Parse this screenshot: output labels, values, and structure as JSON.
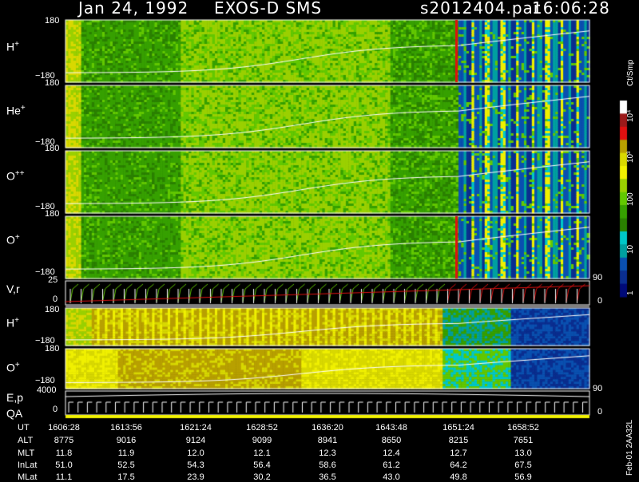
{
  "header": {
    "date": "Jan 24, 1992",
    "instrument": "EXOS-D SMS",
    "file": "s2012404.par",
    "time": "16:06:28"
  },
  "chart_data": [
    {
      "type": "heatmap",
      "panel": "H+",
      "label": "H",
      "charge": "+",
      "yticks": [
        "180",
        "−180"
      ],
      "ylim": [
        -180,
        180
      ]
    },
    {
      "type": "heatmap",
      "panel": "He+",
      "label": "He",
      "charge": "+",
      "yticks": [
        "180",
        "−180"
      ],
      "ylim": [
        -180,
        180
      ]
    },
    {
      "type": "heatmap",
      "panel": "O++",
      "label": "O",
      "charge": "++",
      "yticks": [
        "180",
        "−180"
      ],
      "ylim": [
        -180,
        180
      ]
    },
    {
      "type": "heatmap",
      "panel": "O+",
      "label": "O",
      "charge": "+",
      "yticks": [
        "180",
        "−180"
      ],
      "ylim": [
        -180,
        180
      ]
    },
    {
      "type": "line",
      "panel": "V,r",
      "label": "V,r",
      "yticks": [
        "25",
        "0"
      ],
      "right_ticks": [
        "90",
        "0"
      ]
    },
    {
      "type": "heatmap",
      "panel": "H+ (lower)",
      "label": "H",
      "charge": "+",
      "yticks": [
        "180",
        "−180"
      ]
    },
    {
      "type": "heatmap",
      "panel": "O+ (lower)",
      "label": "O",
      "charge": "+",
      "yticks": [
        "180",
        "−180"
      ]
    },
    {
      "type": "line",
      "panel": "E,p QA",
      "label": "E,p",
      "label2": "QA",
      "yticks": [
        "4000",
        "0"
      ],
      "right_ticks": [
        "90",
        "0"
      ]
    }
  ],
  "colorbar": {
    "title": "Ct/Smp",
    "labels": [
      "10⁴",
      "10³",
      "100",
      "10",
      "1"
    ],
    "colors": [
      "#ffffff",
      "#9c1a1a",
      "#e01010",
      "#b8a000",
      "#d8d800",
      "#f0f000",
      "#9ad000",
      "#62c800",
      "#36a000",
      "#2a8000",
      "#00c8c8",
      "#00a0a0",
      "#0a50b0",
      "#0a2e90",
      "#000a78"
    ]
  },
  "table": {
    "rows": [
      {
        "label": "UT",
        "values": [
          "1606:28",
          "1613:56",
          "1621:24",
          "1628:52",
          "1636:20",
          "1643:48",
          "1651:24",
          "1658:52"
        ]
      },
      {
        "label": "ALT",
        "values": [
          "8775",
          "9016",
          "9124",
          "9099",
          "8941",
          "8650",
          "8215",
          "7651"
        ]
      },
      {
        "label": "MLT",
        "values": [
          "11.8",
          "11.9",
          "12.0",
          "12.1",
          "12.3",
          "12.4",
          "12.7",
          "13.0"
        ]
      },
      {
        "label": "InLat",
        "values": [
          "51.0",
          "52.5",
          "54.3",
          "56.4",
          "58.6",
          "61.2",
          "64.2",
          "67.5"
        ]
      },
      {
        "label": "MLat",
        "values": [
          "11.1",
          "17.5",
          "23.9",
          "30.2",
          "36.5",
          "43.0",
          "49.8",
          "56.9"
        ]
      }
    ]
  },
  "footer_id": "Feb-01 2AA32L"
}
